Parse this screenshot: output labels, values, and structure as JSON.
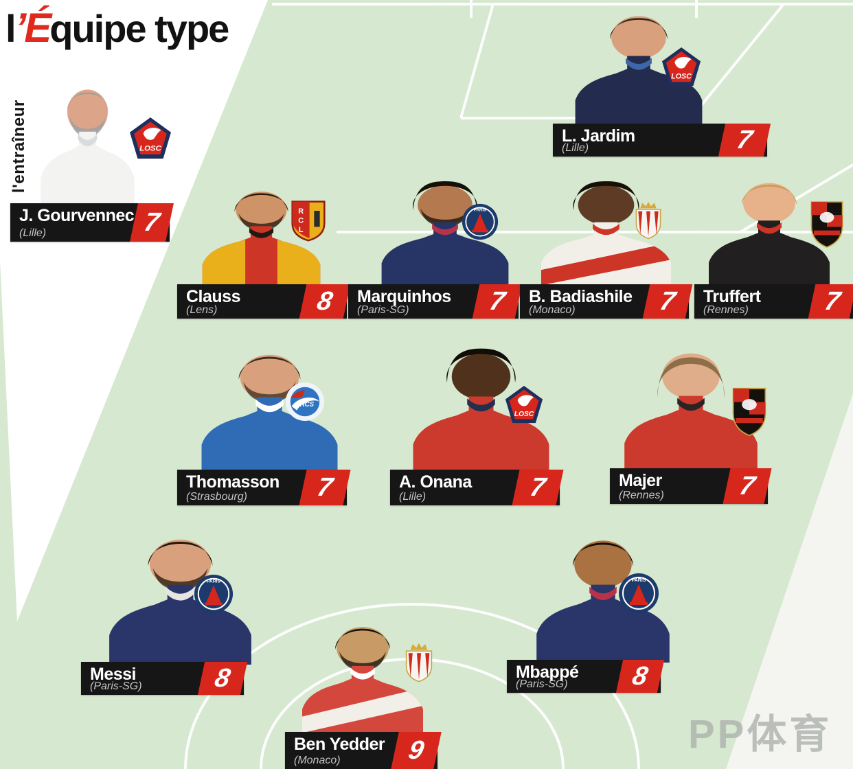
{
  "title": {
    "l": "l",
    "eq": "’É",
    "rest": "quipe type"
  },
  "coach_label": "l'entraîneur",
  "watermark": "PP体育",
  "colors": {
    "pitch_green": "#d6e8cf",
    "bar_black": "#161616",
    "rating_red": "#d7271d",
    "club_gray": "#c4c4c4",
    "line_white": "#ffffff",
    "watermark_gray": "#aeb2ae",
    "title_red": "#e02a1d"
  },
  "badge_labels": {
    "losc": "LOSC",
    "psg": "PARIS",
    "rcl": "RCL",
    "monaco": "",
    "rennes": "",
    "strasbourg": "RCS"
  },
  "players": [
    {
      "id": "gourvennec",
      "role": "coach",
      "name": "J. Gourvennec",
      "club": "(Lille)",
      "rating": "7",
      "badge": "losc",
      "layout": {
        "bar": [
          15,
          296,
          232,
          56
        ],
        "photo": [
          127,
          112,
          155
        ],
        "badge": [
          188,
          170,
          62,
          62
        ],
        "rating_w": 52
      },
      "look": {
        "skin": "#dca488",
        "hair": "#9aa0a3",
        "hair_style": "crew",
        "beard": true,
        "jersey": {
          "base": "#f3f3f1",
          "collar": "#d8dcdf"
        }
      }
    },
    {
      "id": "jardim",
      "role": "goalkeeper",
      "name": "L. Jardim",
      "club": "(Lille)",
      "rating": "7",
      "badge": "losc",
      "layout": {
        "bar": [
          805,
          180,
          312,
          48
        ],
        "photo": [
          930,
          6,
          210
        ],
        "badge": [
          962,
          68,
          60,
          58
        ],
        "rating_w": 66
      },
      "look": {
        "skin": "#d9a07e",
        "hair": "#3a2a1a",
        "hair_style": "short",
        "beard": false,
        "jersey": {
          "base": "#232c4e",
          "collar": "#3e66a8"
        }
      }
    },
    {
      "id": "clauss",
      "role": "defender",
      "name": "Clauss",
      "club": "(Lens)",
      "rating": "8",
      "badge": "rcl",
      "layout": {
        "bar": [
          258,
          414,
          247,
          50
        ],
        "photo": [
          380,
          264,
          195
        ],
        "badge": [
          424,
          289,
          50,
          66
        ],
        "rating_w": 64
      },
      "look": {
        "skin": "#cf9368",
        "hair": "#221709",
        "hair_style": "short",
        "beard": true,
        "jersey": {
          "base": "#cd3526",
          "collar": "#201a12",
          "shoulders": "#e9b01c"
        }
      }
    },
    {
      "id": "marquinhos",
      "role": "defender",
      "name": "Marquinhos",
      "club": "(Paris-SG)",
      "rating": "7",
      "badge": "psg",
      "layout": {
        "bar": [
          507,
          414,
          248,
          50
        ],
        "photo": [
          648,
          254,
          210
        ],
        "badge": [
          672,
          296,
          54,
          54
        ],
        "rating_w": 62
      },
      "look": {
        "skin": "#b5794f",
        "hair": "#161008",
        "hair_style": "afro",
        "beard": true,
        "jersey": {
          "base": "#263565",
          "collar": "#b8334a"
        }
      }
    },
    {
      "id": "badiashile",
      "role": "defender",
      "name": "B. Badiashile",
      "club": "(Monaco)",
      "rating": "7",
      "badge": "monaco",
      "layout": {
        "bar": [
          757,
          414,
          246,
          50
        ],
        "photo": [
          882,
          254,
          215
        ],
        "badge": [
          922,
          288,
          44,
          66
        ],
        "rating_w": 62
      },
      "look": {
        "skin": "#5d3b25",
        "hair": "#171008",
        "hair_style": "afro",
        "beard": false,
        "jersey": {
          "base": "#f2efe9",
          "collar": "#cd3526",
          "band": "#cd3526"
        }
      }
    },
    {
      "id": "truffert",
      "role": "defender",
      "name": "Truffert",
      "club": "(Rennes)",
      "rating": "7",
      "badge": "rennes",
      "layout": {
        "bar": [
          1011,
          414,
          231,
          50
        ],
        "photo": [
          1120,
          250,
          200
        ],
        "badge": [
          1178,
          292,
          52,
          70
        ],
        "rating_w": 60
      },
      "look": {
        "skin": "#e7b28a",
        "hair": "#c79a55",
        "hair_style": "short",
        "beard": false,
        "jersey": {
          "base": "#211f1f",
          "collar": "#cd3526"
        }
      }
    },
    {
      "id": "thomasson",
      "role": "midfielder",
      "name": "Thomasson",
      "club": "(Strasbourg)",
      "rating": "7",
      "badge": "strasbourg",
      "layout": {
        "bar": [
          258,
          684,
          247,
          52
        ],
        "photo": [
          392,
          498,
          225
        ],
        "badge": [
          415,
          556,
          58,
          58
        ],
        "rating_w": 64
      },
      "look": {
        "skin": "#d9a07e",
        "hair": "#3c2c1e",
        "hair_style": "short",
        "beard": true,
        "jersey": {
          "base": "#2f6cb5",
          "collar": "#ffffff"
        }
      }
    },
    {
      "id": "onana",
      "role": "midfielder",
      "name": "A. Onana",
      "club": "(Lille)",
      "rating": "7",
      "badge": "losc",
      "layout": {
        "bar": [
          568,
          684,
          247,
          52
        ],
        "photo": [
          700,
          496,
          225
        ],
        "badge": [
          734,
          561,
          58,
          56
        ],
        "rating_w": 64
      },
      "look": {
        "skin": "#4f311c",
        "hair": "#120d07",
        "hair_style": "afro",
        "beard": false,
        "jersey": {
          "base": "#cc3a2e",
          "collar": "#22304f"
        }
      }
    },
    {
      "id": "majer",
      "role": "midfielder",
      "name": "Majer",
      "club": "(Rennes)",
      "rating": "7",
      "badge": "rennes",
      "layout": {
        "bar": [
          888,
          682,
          230,
          52
        ],
        "photo": [
          1006,
          496,
          220
        ],
        "badge": [
          1064,
          562,
          54,
          76
        ],
        "rating_w": 60
      },
      "look": {
        "skin": "#e0ad8a",
        "hair": "#8d6e47",
        "hair_style": "long",
        "beard": false,
        "jersey": {
          "base": "#cc3a2e",
          "collar": "#2a2424"
        }
      }
    },
    {
      "id": "messi",
      "role": "forward",
      "name": "Messi",
      "club": "(Paris-SG)",
      "rating": "8",
      "badge": "psg",
      "layout": {
        "bar": [
          118,
          964,
          237,
          48
        ],
        "photo": [
          262,
          766,
          235
        ],
        "badge": [
          282,
          836,
          58,
          58
        ],
        "rating_w": 62
      },
      "look": {
        "skin": "#d9a07e",
        "hair": "#241709",
        "hair_style": "short",
        "beard": true,
        "jersey": {
          "base": "#2a3569",
          "collar": "#e8e4e0"
        }
      }
    },
    {
      "id": "mbappe",
      "role": "forward",
      "name": "Mbappé",
      "club": "(Paris-SG)",
      "rating": "8",
      "badge": "psg",
      "layout": {
        "bar": [
          738,
          961,
          224,
          48
        ],
        "photo": [
          878,
          768,
          220
        ],
        "badge": [
          900,
          834,
          60,
          60
        ],
        "rating_w": 60
      },
      "look": {
        "skin": "#aa7240",
        "hair": "#161008",
        "hair_style": "short",
        "beard": false,
        "jersey": {
          "base": "#2a3569",
          "collar": "#b8334a"
        }
      }
    },
    {
      "id": "benyedder",
      "role": "forward",
      "name": "Ben Yedder",
      "club": "(Monaco)",
      "rating": "9",
      "badge": "monaco",
      "layout": {
        "bar": [
          415,
          1066,
          222,
          54
        ],
        "photo": [
          528,
          896,
          200
        ],
        "badge": [
          587,
          928,
          46,
          74
        ],
        "rating_w": 62
      },
      "look": {
        "skin": "#c89a66",
        "hair": "#14100c",
        "hair_style": "short",
        "beard": true,
        "jersey": {
          "base": "#d4473c",
          "collar": "#ffffff",
          "band": "#f2efe9"
        }
      }
    }
  ]
}
